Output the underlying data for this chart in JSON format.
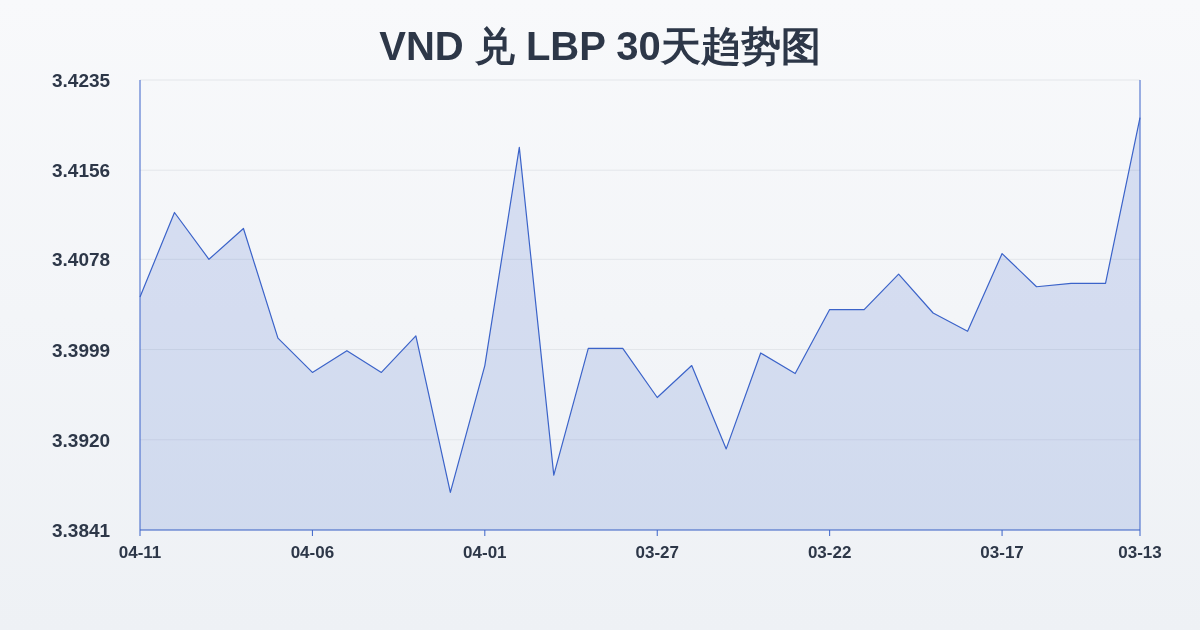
{
  "chart_data": {
    "type": "area",
    "title": "VND 兑 LBP 30天趋势图",
    "categories": [
      "04-11",
      null,
      null,
      null,
      null,
      "04-06",
      null,
      null,
      null,
      null,
      "04-01",
      null,
      null,
      null,
      null,
      "03-27",
      null,
      null,
      null,
      null,
      "03-22",
      null,
      null,
      null,
      null,
      "03-17",
      null,
      null,
      null,
      "03-13"
    ],
    "values": [
      3.4045,
      3.4119,
      3.4078,
      3.4105,
      3.4009,
      3.3979,
      3.3998,
      3.3979,
      3.4011,
      3.3874,
      3.3985,
      3.4176,
      3.3889,
      3.4,
      3.4,
      3.3957,
      3.3985,
      3.3912,
      3.3996,
      3.3978,
      3.4034,
      3.4034,
      3.4065,
      3.4031,
      3.4015,
      3.4083,
      3.4054,
      3.4057,
      3.4057,
      3.4202
    ],
    "color": "#3b63c9",
    "ylim": [
      3.3841,
      3.4235
    ],
    "yticks": [
      3.3841,
      {
        "value": 3.392,
        "label": "3.3920"
      },
      3.3999,
      3.4078,
      3.4156,
      3.4235
    ],
    "grid": "y"
  }
}
